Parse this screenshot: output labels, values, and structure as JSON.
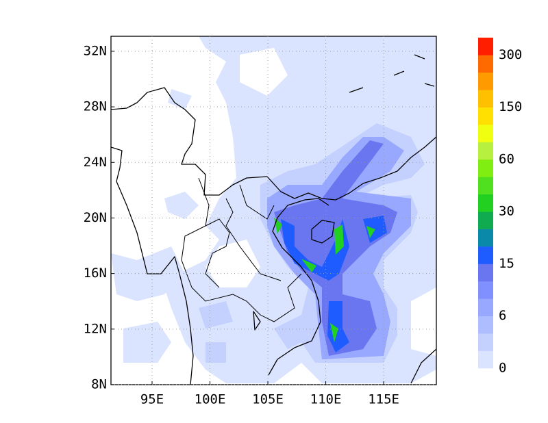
{
  "map": {
    "xlim": [
      91.45,
      119.55
    ],
    "ylim": [
      8,
      33.08
    ],
    "xticks": [
      {
        "value": 95,
        "label": "95E"
      },
      {
        "value": 100,
        "label": "100E"
      },
      {
        "value": 105,
        "label": "105E"
      },
      {
        "value": 110,
        "label": "110E"
      },
      {
        "value": 115,
        "label": "115E"
      }
    ],
    "yticks": [
      {
        "value": 8,
        "label": "8N"
      },
      {
        "value": 12,
        "label": "12N"
      },
      {
        "value": 16,
        "label": "16N"
      },
      {
        "value": 20,
        "label": "20N"
      },
      {
        "value": 24,
        "label": "24N"
      },
      {
        "value": 28,
        "label": "28N"
      },
      {
        "value": 32,
        "label": "32N"
      }
    ],
    "grid": true,
    "colorbar": {
      "ticks": [
        0,
        6,
        15,
        30,
        60,
        150,
        300
      ],
      "colors": [
        "#dbe4ff",
        "#c4d1ff",
        "#aebdff",
        "#98a8ff",
        "#8090ff",
        "#6a76f0",
        "#1e5cff",
        "#0a8aa8",
        "#10aa50",
        "#22d022",
        "#50e020",
        "#80ee10",
        "#b8f040",
        "#f0ff10",
        "#ffe000",
        "#ffc000",
        "#ff9a00",
        "#ff6a00",
        "#ff1e00"
      ]
    }
  }
}
